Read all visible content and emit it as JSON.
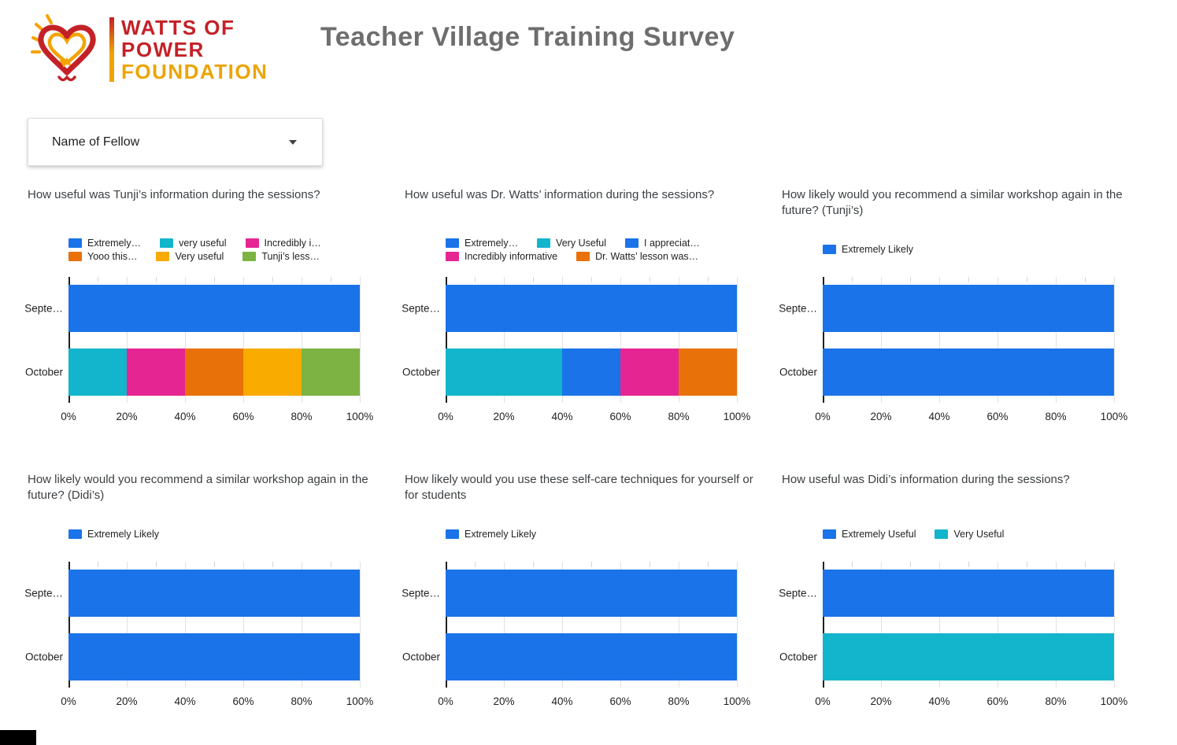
{
  "header": {
    "title": "Teacher Village Training Survey",
    "logo": {
      "line1": "WATTS OF",
      "line2": "POWER",
      "line3": "FOUNDATION"
    }
  },
  "filter": {
    "label": "Name of Fellow"
  },
  "palette": {
    "blue": "#1A73E8",
    "teal": "#12B5CB",
    "magenta": "#E52592",
    "orange": "#E8710A",
    "amber": "#F9AB00",
    "green": "#7CB342"
  },
  "chart_data": [
    {
      "type": "bar",
      "orientation": "horizontal",
      "stacked": true,
      "title": "How useful was Tunji’s information during the sessions?",
      "categories": [
        "September",
        "October"
      ],
      "x_ticks": [
        "0%",
        "20%",
        "40%",
        "60%",
        "80%",
        "100%"
      ],
      "xlim": [
        0,
        100
      ],
      "legend": [
        [
          {
            "label": "Extremely…",
            "color": "#1A73E8"
          },
          {
            "label": "very useful",
            "color": "#12B5CB"
          },
          {
            "label": "Incredibly i…",
            "color": "#E52592"
          }
        ],
        [
          {
            "label": "Yooo this…",
            "color": "#E8710A"
          },
          {
            "label": "Very useful",
            "color": "#F9AB00"
          },
          {
            "label": "Tunji’s less…",
            "color": "#7CB342"
          }
        ]
      ],
      "rows": [
        {
          "category": "September",
          "display": "Septe…",
          "segments": [
            {
              "label": "Extremely…",
              "value": 100,
              "color": "#1A73E8"
            }
          ]
        },
        {
          "category": "October",
          "display": "October",
          "segments": [
            {
              "label": "very useful",
              "value": 20,
              "color": "#12B5CB"
            },
            {
              "label": "Incredibly i…",
              "value": 20,
              "color": "#E52592"
            },
            {
              "label": "Yooo this…",
              "value": 20,
              "color": "#E8710A"
            },
            {
              "label": "Very useful",
              "value": 20,
              "color": "#F9AB00"
            },
            {
              "label": "Tunji’s less…",
              "value": 20,
              "color": "#7CB342"
            }
          ]
        }
      ]
    },
    {
      "type": "bar",
      "orientation": "horizontal",
      "stacked": true,
      "title": "How useful was Dr. Watts’ information during the sessions?",
      "categories": [
        "September",
        "October"
      ],
      "x_ticks": [
        "0%",
        "20%",
        "40%",
        "60%",
        "80%",
        "100%"
      ],
      "xlim": [
        0,
        100
      ],
      "legend": [
        [
          {
            "label": "Extremely…",
            "color": "#1A73E8"
          },
          {
            "label": "Very Useful",
            "color": "#12B5CB"
          },
          {
            "label": "I appreciat…",
            "color": "#1A73E8"
          }
        ],
        [
          {
            "label": "Incredibly informative",
            "color": "#E52592"
          },
          {
            "label": "Dr. Watts’ lesson was…",
            "color": "#E8710A"
          }
        ]
      ],
      "rows": [
        {
          "category": "September",
          "display": "Septe…",
          "segments": [
            {
              "label": "Extremely…",
              "value": 100,
              "color": "#1A73E8"
            }
          ]
        },
        {
          "category": "October",
          "display": "October",
          "segments": [
            {
              "label": "Very Useful",
              "value": 40,
              "color": "#12B5CB"
            },
            {
              "label": "I appreciat…",
              "value": 20,
              "color": "#1A73E8"
            },
            {
              "label": "Incredibly informative",
              "value": 20,
              "color": "#E52592"
            },
            {
              "label": "Dr. Watts’ lesson was…",
              "value": 20,
              "color": "#E8710A"
            }
          ]
        }
      ]
    },
    {
      "type": "bar",
      "orientation": "horizontal",
      "stacked": true,
      "title": "How likely would you recommend a similar workshop again in the future? (Tunji’s)",
      "categories": [
        "September",
        "October"
      ],
      "x_ticks": [
        "0%",
        "20%",
        "40%",
        "60%",
        "80%",
        "100%"
      ],
      "xlim": [
        0,
        100
      ],
      "legend": [
        [
          {
            "label": "Extremely Likely",
            "color": "#1A73E8"
          }
        ]
      ],
      "rows": [
        {
          "category": "September",
          "display": "Septe…",
          "segments": [
            {
              "label": "Extremely Likely",
              "value": 100,
              "color": "#1A73E8"
            }
          ]
        },
        {
          "category": "October",
          "display": "October",
          "segments": [
            {
              "label": "Extremely Likely",
              "value": 100,
              "color": "#1A73E8"
            }
          ]
        }
      ]
    },
    {
      "type": "bar",
      "orientation": "horizontal",
      "stacked": true,
      "title": "How likely would you recommend a similar workshop again in the future? (Didi’s)",
      "categories": [
        "September",
        "October"
      ],
      "x_ticks": [
        "0%",
        "20%",
        "40%",
        "60%",
        "80%",
        "100%"
      ],
      "xlim": [
        0,
        100
      ],
      "legend": [
        [
          {
            "label": "Extremely Likely",
            "color": "#1A73E8"
          }
        ]
      ],
      "rows": [
        {
          "category": "September",
          "display": "Septe…",
          "segments": [
            {
              "label": "Extremely Likely",
              "value": 100,
              "color": "#1A73E8"
            }
          ]
        },
        {
          "category": "October",
          "display": "October",
          "segments": [
            {
              "label": "Extremely Likely",
              "value": 100,
              "color": "#1A73E8"
            }
          ]
        }
      ]
    },
    {
      "type": "bar",
      "orientation": "horizontal",
      "stacked": true,
      "title": "How likely would you use these self-care techniques for yourself or for students",
      "categories": [
        "September",
        "October"
      ],
      "x_ticks": [
        "0%",
        "20%",
        "40%",
        "60%",
        "80%",
        "100%"
      ],
      "xlim": [
        0,
        100
      ],
      "legend": [
        [
          {
            "label": "Extremely Likely",
            "color": "#1A73E8"
          }
        ]
      ],
      "rows": [
        {
          "category": "September",
          "display": "Septe…",
          "segments": [
            {
              "label": "Extremely Likely",
              "value": 100,
              "color": "#1A73E8"
            }
          ]
        },
        {
          "category": "October",
          "display": "October",
          "segments": [
            {
              "label": "Extremely Likely",
              "value": 100,
              "color": "#1A73E8"
            }
          ]
        }
      ]
    },
    {
      "type": "bar",
      "orientation": "horizontal",
      "stacked": true,
      "title": "How useful was Didi’s information during the sessions?",
      "categories": [
        "September",
        "October"
      ],
      "x_ticks": [
        "0%",
        "20%",
        "40%",
        "60%",
        "80%",
        "100%"
      ],
      "xlim": [
        0,
        100
      ],
      "legend": [
        [
          {
            "label": "Extremely Useful",
            "color": "#1A73E8"
          },
          {
            "label": "Very Useful",
            "color": "#12B5CB"
          }
        ]
      ],
      "rows": [
        {
          "category": "September",
          "display": "Septe…",
          "segments": [
            {
              "label": "Extremely Useful",
              "value": 100,
              "color": "#1A73E8"
            }
          ]
        },
        {
          "category": "October",
          "display": "October",
          "segments": [
            {
              "label": "Very Useful",
              "value": 100,
              "color": "#12B5CB"
            }
          ]
        }
      ]
    }
  ]
}
